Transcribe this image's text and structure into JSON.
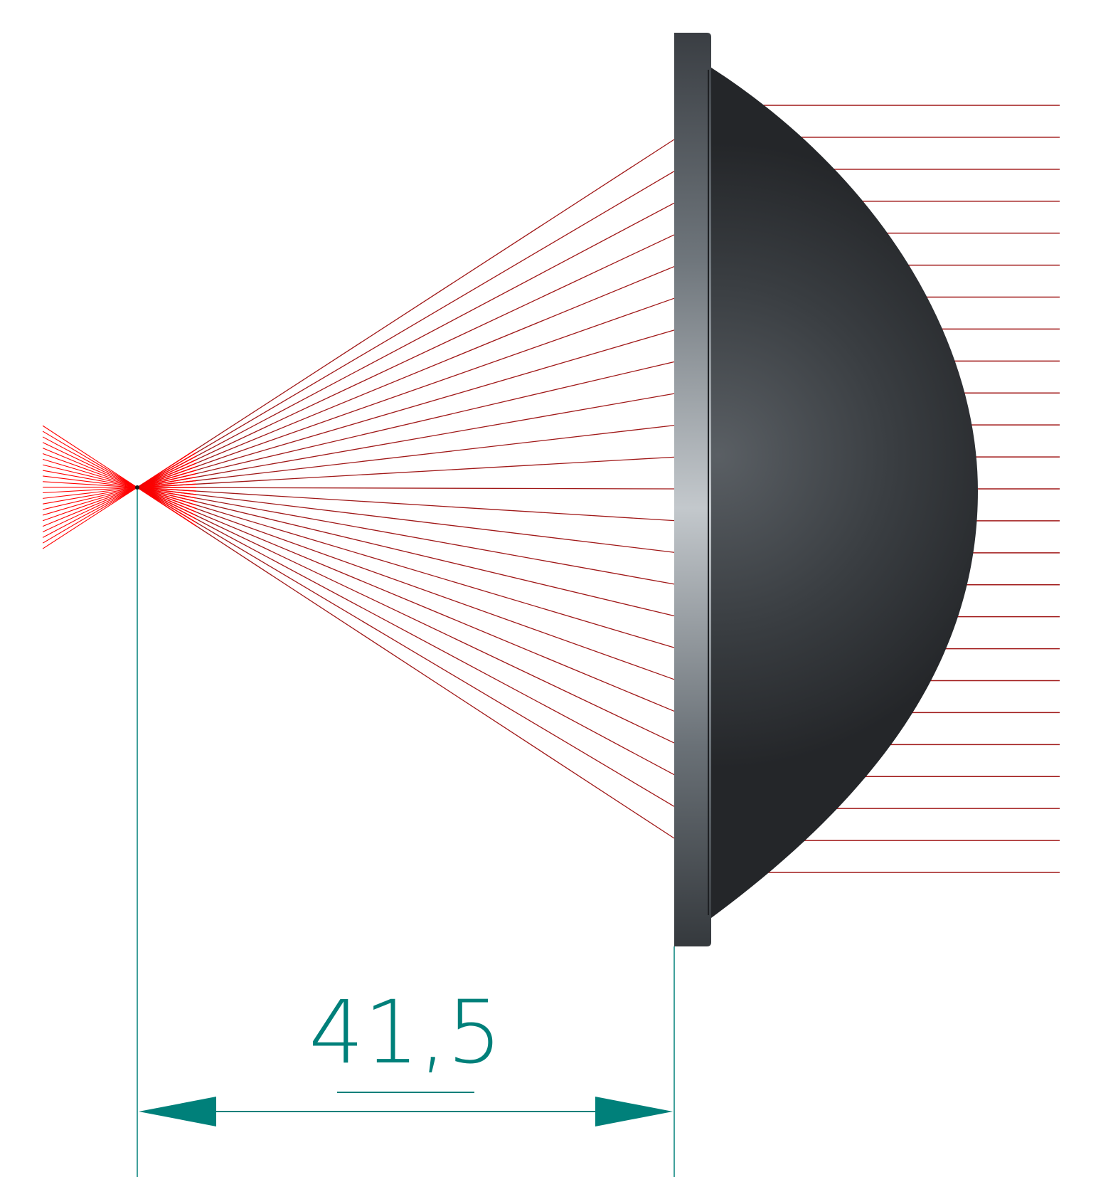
{
  "diagram": {
    "dimension_label": "41,5",
    "colors": {
      "background": "#ffffff",
      "ray": "#a01818",
      "ray_focus": "#ff0000",
      "dimension": "#00807a",
      "lens_dark": "#26282b",
      "lens_light": "#c3c8cc"
    }
  }
}
